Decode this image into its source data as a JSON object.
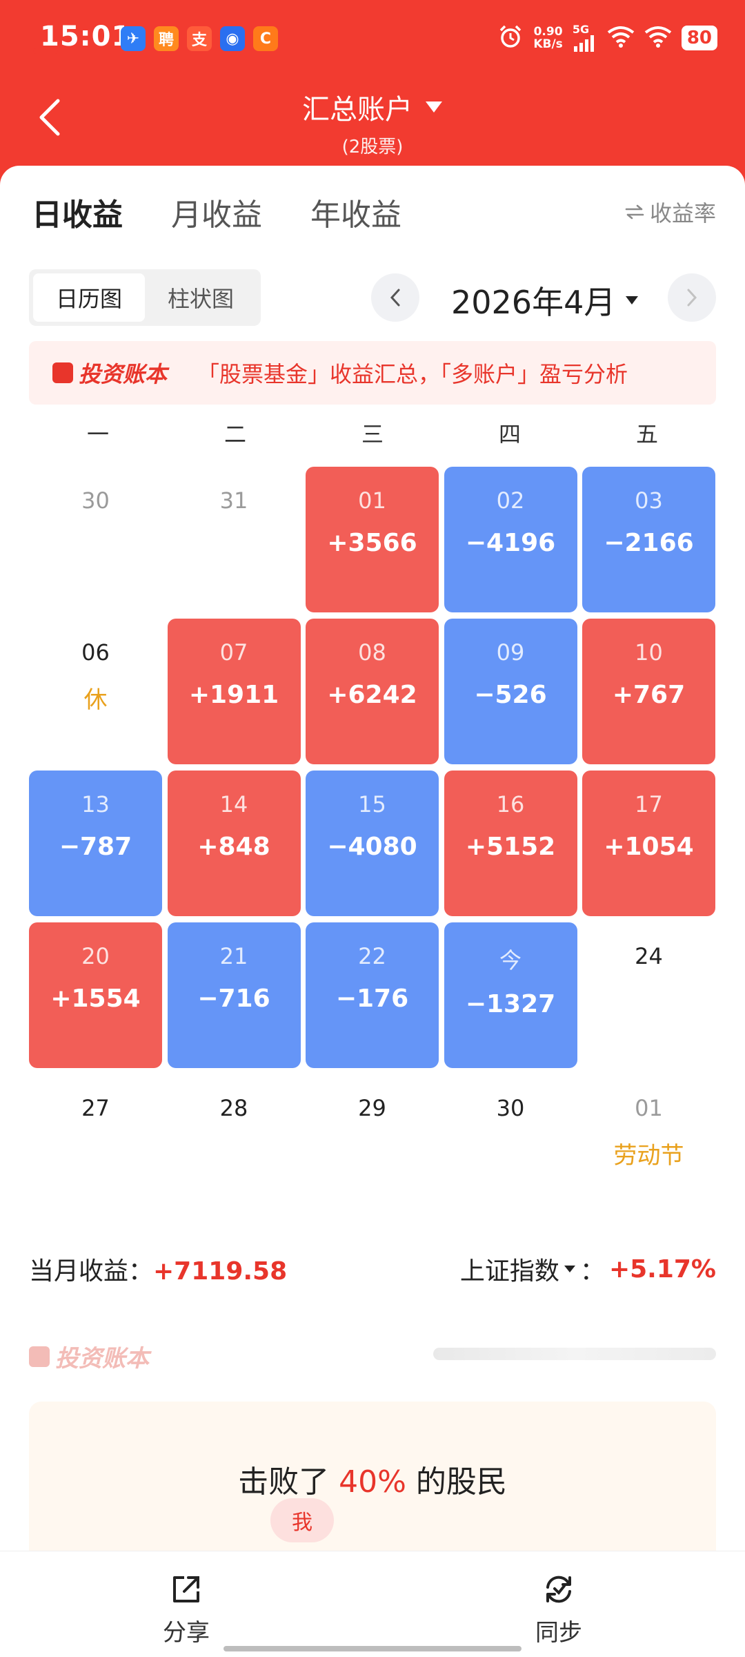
{
  "statusbar": {
    "time": "15:01",
    "net_speed_value": "0.90",
    "net_speed_unit": "KB/s",
    "network": "5G",
    "battery": "80",
    "app_icons": [
      {
        "name": "feishu-app-icon",
        "color": "#2f7df6",
        "glyph": "✈"
      },
      {
        "name": "zhaopin-app-icon",
        "color": "#ff8a1f",
        "glyph": "聘"
      },
      {
        "name": "alipay-app-icon",
        "color": "#ff5b3a",
        "glyph": "支"
      },
      {
        "name": "qq-app-icon",
        "color": "#2a6ff0",
        "glyph": "◉"
      },
      {
        "name": "alibaba-app-icon",
        "color": "#ff7a1a",
        "glyph": "C"
      }
    ]
  },
  "header": {
    "title": "汇总账户",
    "subtitle": "(2股票)"
  },
  "tabs": [
    {
      "label": "日收益",
      "active": true
    },
    {
      "label": "月收益",
      "active": false
    },
    {
      "label": "年收益",
      "active": false
    }
  ],
  "rate_link": "收益率",
  "view_toggle": [
    {
      "label": "日历图",
      "active": true
    },
    {
      "label": "柱状图",
      "active": false
    }
  ],
  "month": "2026年4月",
  "banner": {
    "brand": "投资账本",
    "text": "「股票基金」收益汇总，「多账户」盈亏分析"
  },
  "weekdays": [
    "一",
    "二",
    "三",
    "四",
    "五"
  ],
  "calendar": [
    [
      {
        "day": "30",
        "type": "muted",
        "value": "",
        "note": ""
      },
      {
        "day": "31",
        "type": "muted",
        "value": "",
        "note": ""
      },
      {
        "day": "01",
        "type": "up",
        "value": "+3566",
        "note": ""
      },
      {
        "day": "02",
        "type": "down",
        "value": "−4196",
        "note": ""
      },
      {
        "day": "03",
        "type": "down",
        "value": "−2166",
        "note": ""
      }
    ],
    [
      {
        "day": "06",
        "type": "plain",
        "value": "",
        "note": "休"
      },
      {
        "day": "07",
        "type": "up",
        "value": "+1911",
        "note": ""
      },
      {
        "day": "08",
        "type": "up",
        "value": "+6242",
        "note": ""
      },
      {
        "day": "09",
        "type": "down",
        "value": "−526",
        "note": ""
      },
      {
        "day": "10",
        "type": "up",
        "value": "+767",
        "note": ""
      }
    ],
    [
      {
        "day": "13",
        "type": "down",
        "value": "−787",
        "note": ""
      },
      {
        "day": "14",
        "type": "up",
        "value": "+848",
        "note": ""
      },
      {
        "day": "15",
        "type": "down",
        "value": "−4080",
        "note": ""
      },
      {
        "day": "16",
        "type": "up",
        "value": "+5152",
        "note": ""
      },
      {
        "day": "17",
        "type": "up",
        "value": "+1054",
        "note": ""
      }
    ],
    [
      {
        "day": "20",
        "type": "up",
        "value": "+1554",
        "note": ""
      },
      {
        "day": "21",
        "type": "down",
        "value": "−716",
        "note": ""
      },
      {
        "day": "22",
        "type": "down",
        "value": "−176",
        "note": ""
      },
      {
        "day": "今",
        "type": "down",
        "value": "−1327",
        "note": ""
      },
      {
        "day": "24",
        "type": "plain",
        "value": "",
        "note": ""
      }
    ],
    [
      {
        "day": "27",
        "type": "plain",
        "value": "",
        "note": ""
      },
      {
        "day": "28",
        "type": "plain",
        "value": "",
        "note": ""
      },
      {
        "day": "29",
        "type": "plain",
        "value": "",
        "note": ""
      },
      {
        "day": "30",
        "type": "plain",
        "value": "",
        "note": ""
      },
      {
        "day": "01",
        "type": "muted",
        "value": "",
        "note": "劳动节"
      }
    ]
  ],
  "summary": {
    "month_label": "当月收益：",
    "month_value": "+7119.58",
    "index_label": "上证指数",
    "index_sep": "：",
    "index_value": "+5.17%"
  },
  "beat": {
    "prefix": "击败了",
    "percent": "40%",
    "suffix": "的股民",
    "me": "我"
  },
  "bottom": {
    "share": "分享",
    "sync": "同步"
  },
  "colors": {
    "header_red": "#f23b30",
    "gain_red": "#f25e57",
    "loss_blue": "#6595f7",
    "holiday_orange": "#e9a11d"
  }
}
